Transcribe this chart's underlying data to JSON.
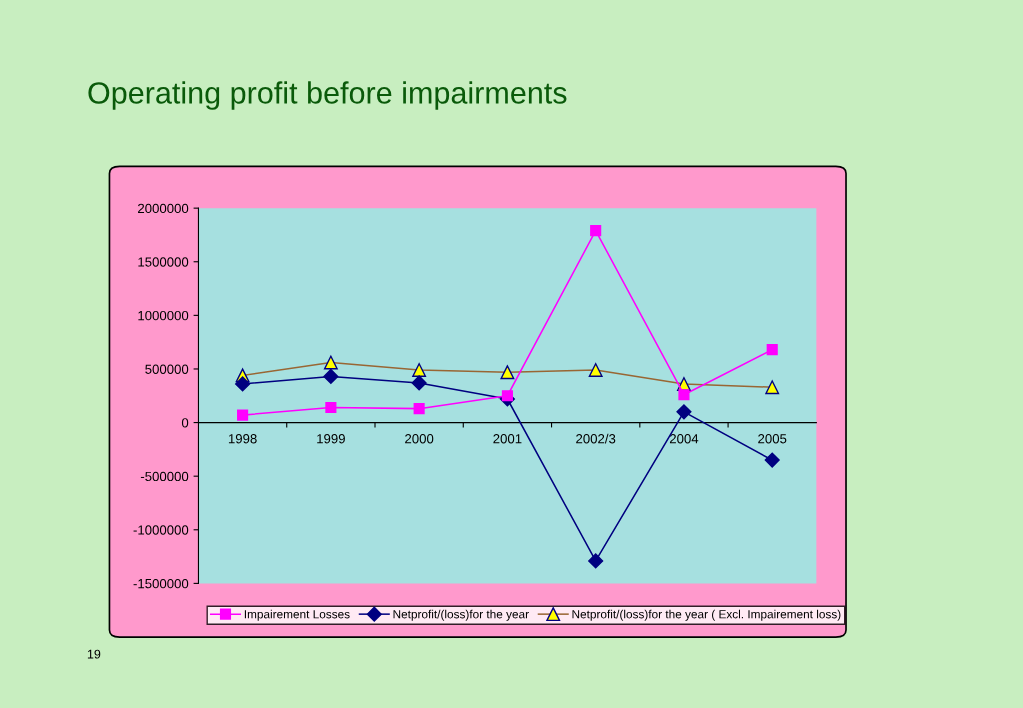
{
  "chart_data": {
    "type": "line",
    "title": "Operating profit before impairments",
    "categories": [
      "1998",
      "1999",
      "2000",
      "2001",
      "2002/3",
      "2004",
      "2005"
    ],
    "series": [
      {
        "name": "Impairement Losses",
        "color": "#ff00ff",
        "marker": "square",
        "values": [
          70000,
          140000,
          130000,
          250000,
          1790000,
          260000,
          680000
        ]
      },
      {
        "name": "Netprofit/(loss)for the year",
        "color": "#000080",
        "marker": "diamond",
        "values": [
          360000,
          430000,
          370000,
          220000,
          -1290000,
          100000,
          -350000
        ]
      },
      {
        "name": "Netprofit/(loss)for the year ( Excl. Impairement loss)",
        "color": "#996633",
        "marker": "triangle",
        "values": [
          440000,
          560000,
          490000,
          470000,
          490000,
          360000,
          330000
        ]
      }
    ],
    "ylim": [
      -1500000,
      2000000
    ],
    "yticks": [
      -1500000,
      -1000000,
      -500000,
      0,
      500000,
      1000000,
      1500000,
      2000000
    ],
    "grid": false,
    "legend": "bottom",
    "annotations": [
      "19"
    ]
  }
}
